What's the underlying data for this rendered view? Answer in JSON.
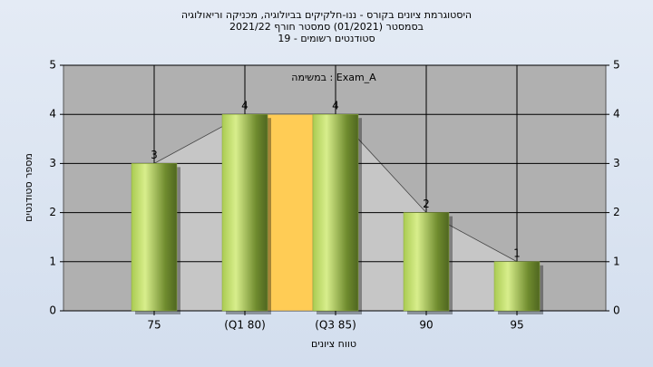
{
  "chart_data": {
    "type": "bar",
    "title": "היסטוגרמת ציונים בקורס - ננו-חלקיקים בביולוגיה, מכניקה וריאולוגיה",
    "subtitle": "בסמסטר  (01/2021)  סמסטר חורף 2021/22",
    "subtitle2": "סטודנטים רשומים - 19",
    "annotation": "Exam_A : במשימה",
    "x_label": "טווח ציונים",
    "y_label": "מספר סטודנטים",
    "categories": [
      "75",
      "(Q1 80)",
      "(Q3 85)",
      "90",
      "95"
    ],
    "values": [
      3,
      4,
      4,
      2,
      1
    ],
    "ylim": [
      0,
      5
    ],
    "yticks": [
      0,
      1,
      2,
      3,
      4,
      5
    ],
    "grid": true,
    "color": "#8aa83a",
    "quartile_color": "#ffcc55"
  }
}
